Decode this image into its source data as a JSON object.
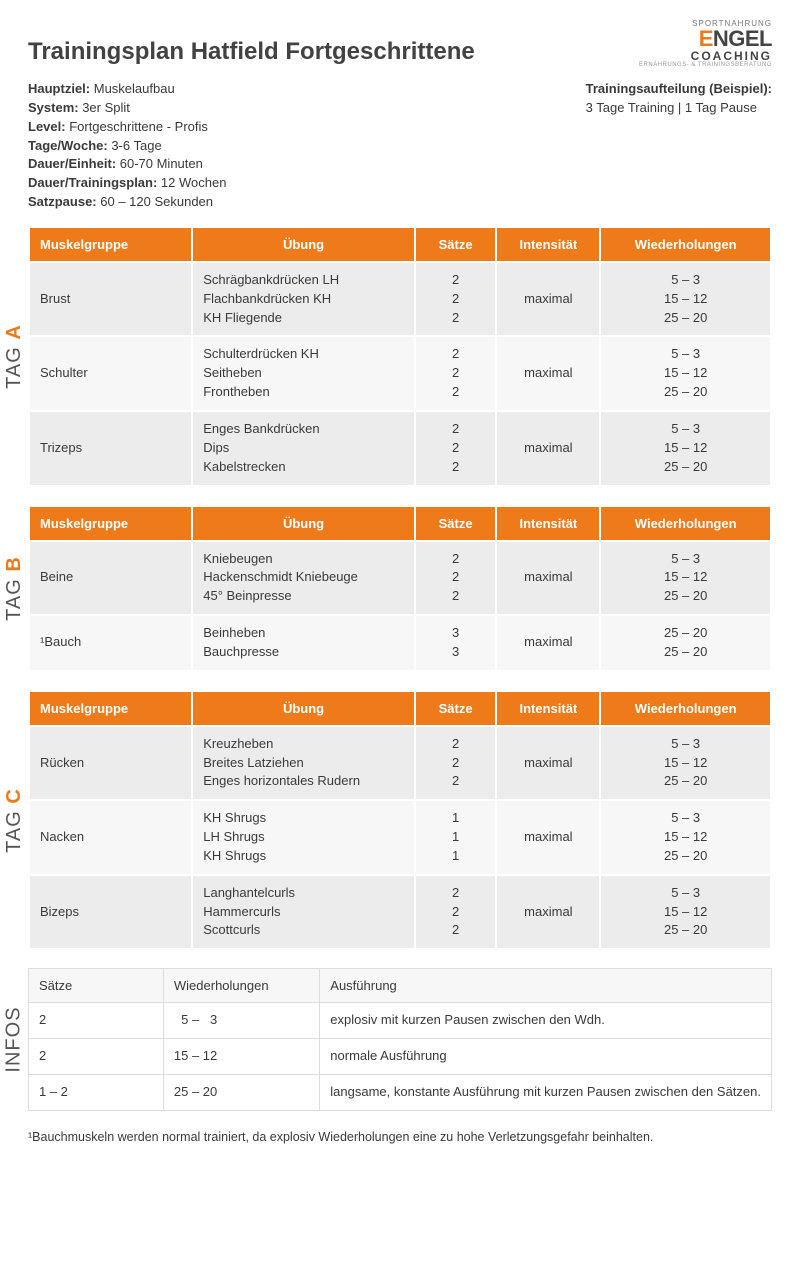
{
  "colors": {
    "accent": "#ee7a1a",
    "header_bg": "#ee7a1a",
    "header_fg": "#ffffff",
    "row_even": "#ececec",
    "row_odd": "#f7f7f7",
    "text": "#3a3a3a",
    "border": "#ffffff"
  },
  "logo": {
    "line1": "SPORTNAHRUNG",
    "line2a": "E",
    "line2b": "NGEL",
    "line3": "COACHING",
    "line4": "ERNÄHRUNGS- & TRAININGSBERATUNG"
  },
  "title": "Trainingsplan Hatfield Fortgeschrittene",
  "meta_left": [
    {
      "label": "Hauptziel:",
      "value": " Muskelaufbau"
    },
    {
      "label": "System:",
      "value": " 3er Split"
    },
    {
      "label": "Level:",
      "value": " Fortgeschrittene - Profis"
    },
    {
      "label": "Tage/Woche:",
      "value": " 3-6 Tage"
    },
    {
      "label": "Dauer/Einheit:",
      "value": " 60-70 Minuten"
    },
    {
      "label": "Dauer/Trainingsplan:",
      "value": " 12 Wochen"
    },
    {
      "label": "Satzpause:",
      "value": " 60 – 120 Sekunden"
    }
  ],
  "meta_right": {
    "label": "Trainingsaufteilung (Beispiel):",
    "value": "3 Tage Training | 1 Tag Pause"
  },
  "columns": [
    "Muskelgruppe",
    "Übung",
    "Sätze",
    "Intensität",
    "Wiederholungen"
  ],
  "col_widths": [
    "22%",
    "30%",
    "11%",
    "14%",
    "23%"
  ],
  "days": [
    {
      "label_prefix": "TAG ",
      "label_accent": "A",
      "rows": [
        {
          "group": "Brust",
          "exercises": "Schrägbankdrücken LH\nFlachbankdrücken KH\nKH Fliegende",
          "sets": "2\n2\n2",
          "intensity": "maximal",
          "reps": "5 –   3\n15 – 12\n25 – 20"
        },
        {
          "group": "Schulter",
          "exercises": "Schulterdrücken KH\nSeitheben\nFrontheben",
          "sets": "2\n2\n2",
          "intensity": "maximal",
          "reps": "5 –   3\n15 – 12\n25 – 20"
        },
        {
          "group": "Trizeps",
          "exercises": "Enges Bankdrücken\nDips\nKabelstrecken",
          "sets": "2\n2\n2",
          "intensity": "maximal",
          "reps": "5 –   3\n15 – 12\n25 – 20"
        }
      ]
    },
    {
      "label_prefix": "TAG ",
      "label_accent": "B",
      "rows": [
        {
          "group": "Beine",
          "exercises": "Kniebeugen\nHackenschmidt Kniebeuge\n45° Beinpresse",
          "sets": "2\n2\n2",
          "intensity": "maximal",
          "reps": "5 –   3\n15 – 12\n25 – 20"
        },
        {
          "group": "¹Bauch",
          "exercises": "Beinheben\nBauchpresse",
          "sets": "3\n3",
          "intensity": "maximal",
          "reps": "25 – 20\n25 – 20"
        }
      ]
    },
    {
      "label_prefix": "TAG ",
      "label_accent": "C",
      "rows": [
        {
          "group": "Rücken",
          "exercises": "Kreuzheben\nBreites Latziehen\nEnges horizontales Rudern",
          "sets": "2\n2\n2",
          "intensity": "maximal",
          "reps": "5 –   3\n15 – 12\n25 – 20"
        },
        {
          "group": "Nacken",
          "exercises": "KH Shrugs\nLH Shrugs\nKH Shrugs",
          "sets": "1\n1\n1",
          "intensity": "maximal",
          "reps": "5 –   3\n15 – 12\n25 – 20"
        },
        {
          "group": "Bizeps",
          "exercises": "Langhantelcurls\nHammercurls\nScottcurls",
          "sets": "2\n2\n2",
          "intensity": "maximal",
          "reps": "5 –   3\n15 – 12\n25 – 20"
        }
      ]
    }
  ],
  "info": {
    "label": "INFOS",
    "columns": [
      "Sätze",
      "Wiederholungen",
      "Ausführung"
    ],
    "col_widths": [
      "24%",
      "24%",
      "52%"
    ],
    "rows": [
      {
        "sets": "2",
        "reps": "  5 –   3",
        "exec": "explosiv mit kurzen Pausen zwischen den Wdh."
      },
      {
        "sets": "2",
        "reps": "15 – 12",
        "exec": "normale Ausführung"
      },
      {
        "sets": "1 – 2",
        "reps": "25 – 20",
        "exec": "langsame, konstante Ausführung mit kurzen Pausen zwischen den Sätzen."
      }
    ]
  },
  "footnote": "¹Bauchmuskeln werden normal trainiert, da explosiv Wiederholungen eine zu hohe Verletzungsgefahr beinhalten."
}
